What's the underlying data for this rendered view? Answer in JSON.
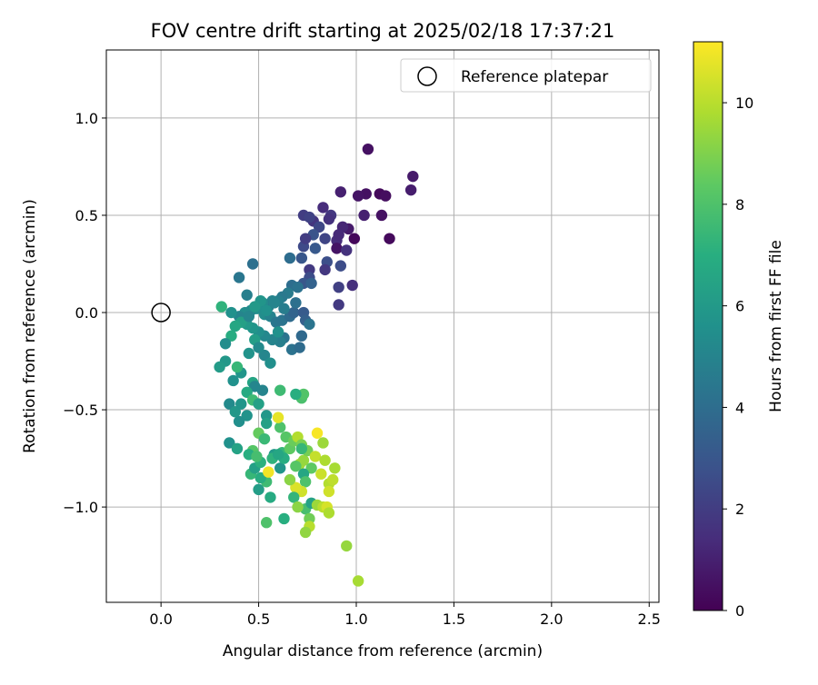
{
  "chart_data": {
    "type": "scatter",
    "title": "FOV centre drift starting at 2025/02/18 17:37:21",
    "xlabel": "Angular distance from reference (arcmin)",
    "ylabel": "Rotation from reference (arcmin)",
    "xlim": [
      -0.28,
      2.55
    ],
    "ylim": [
      -1.49,
      1.35
    ],
    "xticks": [
      0.0,
      0.5,
      1.0,
      1.5,
      2.0,
      2.5
    ],
    "xtick_labels": [
      "0.0",
      "0.5",
      "1.0",
      "1.5",
      "2.0",
      "2.5"
    ],
    "yticks": [
      -1.0,
      -0.5,
      0.0,
      0.5,
      1.0
    ],
    "ytick_labels": [
      "−1.0",
      "−0.5",
      "0.0",
      "0.5",
      "1.0"
    ],
    "grid": true,
    "legend": {
      "placement": "top-right",
      "entries": [
        "Reference platepar"
      ]
    },
    "reference_point": {
      "x": 0.0,
      "y": 0.0
    },
    "colorbar": {
      "label": "Hours from first FF file",
      "colormap": "viridis",
      "range": [
        0,
        11.2
      ],
      "ticks": [
        0,
        2,
        4,
        6,
        8,
        10
      ],
      "tick_labels": [
        "0",
        "2",
        "4",
        "6",
        "8",
        "10"
      ]
    },
    "points": [
      [
        1.06,
        0.84,
        0.5
      ],
      [
        1.29,
        0.7,
        0.8
      ],
      [
        1.28,
        0.63,
        0.9
      ],
      [
        0.92,
        0.62,
        1.0
      ],
      [
        1.12,
        0.61,
        0.3
      ],
      [
        1.15,
        0.6,
        0.4
      ],
      [
        1.05,
        0.61,
        0.5
      ],
      [
        1.01,
        0.6,
        0.6
      ],
      [
        1.13,
        0.5,
        0.5
      ],
      [
        1.04,
        0.5,
        1.0
      ],
      [
        1.17,
        0.38,
        0.3
      ],
      [
        0.99,
        0.38,
        0.2
      ],
      [
        0.96,
        0.43,
        0.8
      ],
      [
        0.93,
        0.44,
        1.2
      ],
      [
        0.9,
        0.37,
        1.4
      ],
      [
        0.9,
        0.33,
        0.6
      ],
      [
        0.95,
        0.32,
        1.6
      ],
      [
        0.91,
        0.4,
        1.3
      ],
      [
        0.83,
        0.54,
        1.4
      ],
      [
        0.87,
        0.5,
        1.8
      ],
      [
        0.86,
        0.48,
        1.6
      ],
      [
        0.78,
        0.47,
        1.7
      ],
      [
        0.73,
        0.5,
        2.0
      ],
      [
        0.76,
        0.49,
        2.2
      ],
      [
        0.81,
        0.44,
        2.4
      ],
      [
        0.84,
        0.38,
        2.3
      ],
      [
        0.78,
        0.4,
        2.9
      ],
      [
        0.73,
        0.34,
        2.5
      ],
      [
        0.79,
        0.33,
        3.1
      ],
      [
        0.74,
        0.38,
        2.0
      ],
      [
        0.72,
        0.28,
        3.0
      ],
      [
        0.85,
        0.26,
        2.7
      ],
      [
        0.84,
        0.22,
        1.8
      ],
      [
        0.76,
        0.22,
        1.9
      ],
      [
        0.76,
        0.18,
        2.6
      ],
      [
        0.73,
        0.15,
        3.0
      ],
      [
        0.77,
        0.15,
        3.5
      ],
      [
        0.92,
        0.24,
        2.6
      ],
      [
        0.91,
        0.13,
        2.1
      ],
      [
        0.98,
        0.14,
        1.5
      ],
      [
        0.91,
        0.04,
        1.9
      ],
      [
        0.66,
        0.28,
        4.0
      ],
      [
        0.67,
        0.14,
        4.0
      ],
      [
        0.7,
        0.13,
        4.2
      ],
      [
        0.65,
        0.1,
        4.6
      ],
      [
        0.62,
        0.08,
        4.5
      ],
      [
        0.6,
        0.06,
        4.8
      ],
      [
        0.57,
        0.06,
        5.0
      ],
      [
        0.55,
        0.03,
        4.7
      ],
      [
        0.52,
        0.05,
        5.3
      ],
      [
        0.49,
        0.02,
        5.5
      ],
      [
        0.46,
        0.01,
        5.2
      ],
      [
        0.43,
        0.0,
        5.4
      ],
      [
        0.4,
        -0.02,
        5.0
      ],
      [
        0.36,
        0.0,
        5.6
      ],
      [
        0.51,
        0.06,
        5.8
      ],
      [
        0.48,
        0.03,
        6.0
      ],
      [
        0.53,
        -0.01,
        5.4
      ],
      [
        0.56,
        -0.02,
        4.9
      ],
      [
        0.59,
        -0.05,
        4.4
      ],
      [
        0.62,
        -0.04,
        4.3
      ],
      [
        0.66,
        -0.02,
        3.9
      ],
      [
        0.68,
        0.0,
        3.6
      ],
      [
        0.73,
        0.0,
        3.2
      ],
      [
        0.74,
        -0.04,
        3.4
      ],
      [
        0.72,
        -0.12,
        3.8
      ],
      [
        0.63,
        -0.13,
        4.3
      ],
      [
        0.61,
        -0.15,
        4.8
      ],
      [
        0.57,
        -0.14,
        5.0
      ],
      [
        0.53,
        -0.12,
        5.2
      ],
      [
        0.5,
        -0.1,
        5.5
      ],
      [
        0.47,
        -0.08,
        5.8
      ],
      [
        0.44,
        -0.06,
        6.0
      ],
      [
        0.41,
        -0.05,
        6.3
      ],
      [
        0.38,
        -0.07,
        6.6
      ],
      [
        0.36,
        -0.12,
        6.9
      ],
      [
        0.33,
        -0.16,
        5.4
      ],
      [
        0.31,
        0.03,
        7.2
      ],
      [
        0.44,
        0.09,
        4.8
      ],
      [
        0.48,
        -0.14,
        6.2
      ],
      [
        0.45,
        -0.21,
        5.7
      ],
      [
        0.53,
        -0.22,
        5.1
      ],
      [
        0.56,
        -0.26,
        5.5
      ],
      [
        0.41,
        -0.31,
        5.8
      ],
      [
        0.39,
        -0.28,
        7.4
      ],
      [
        0.37,
        -0.35,
        5.6
      ],
      [
        0.33,
        -0.25,
        5.9
      ],
      [
        0.3,
        -0.28,
        6.1
      ],
      [
        0.47,
        -0.36,
        6.5
      ],
      [
        0.52,
        -0.4,
        5.0
      ],
      [
        0.48,
        -0.38,
        5.1
      ],
      [
        0.44,
        -0.41,
        6.8
      ],
      [
        0.47,
        -0.45,
        7.6
      ],
      [
        0.5,
        -0.47,
        6.3
      ],
      [
        0.44,
        -0.53,
        5.7
      ],
      [
        0.4,
        -0.56,
        5.5
      ],
      [
        0.35,
        -0.47,
        5.3
      ],
      [
        0.38,
        -0.51,
        5.9
      ],
      [
        0.35,
        -0.67,
        5.6
      ],
      [
        0.39,
        -0.7,
        6.4
      ],
      [
        0.41,
        -0.47,
        5.8
      ],
      [
        0.54,
        -0.53,
        5.9
      ],
      [
        0.54,
        -0.57,
        6.3
      ],
      [
        0.5,
        -0.62,
        8.5
      ],
      [
        0.53,
        -0.65,
        7.5
      ],
      [
        0.61,
        -0.59,
        8.0
      ],
      [
        0.64,
        -0.64,
        8.2
      ],
      [
        0.6,
        -0.54,
        10.8
      ],
      [
        0.62,
        -0.72,
        7.4
      ],
      [
        0.58,
        -0.73,
        6.0
      ],
      [
        0.61,
        -0.8,
        5.8
      ],
      [
        0.63,
        -0.75,
        6.9
      ],
      [
        0.66,
        -0.7,
        8.4
      ],
      [
        0.68,
        -0.66,
        8.6
      ],
      [
        0.7,
        -0.64,
        9.9
      ],
      [
        0.72,
        -0.68,
        8.9
      ],
      [
        0.71,
        -0.78,
        9.6
      ],
      [
        0.73,
        -0.76,
        9.4
      ],
      [
        0.75,
        -0.71,
        8.8
      ],
      [
        0.77,
        -0.8,
        8.4
      ],
      [
        0.79,
        -0.74,
        10.2
      ],
      [
        0.8,
        -0.62,
        11.1
      ],
      [
        0.83,
        -0.67,
        9.5
      ],
      [
        0.84,
        -0.76,
        9.8
      ],
      [
        0.82,
        -0.83,
        10.3
      ],
      [
        0.86,
        -0.88,
        9.9
      ],
      [
        0.86,
        -0.92,
        10.4
      ],
      [
        0.89,
        -0.8,
        9.7
      ],
      [
        0.88,
        -0.86,
        10.1
      ],
      [
        0.73,
        -0.83,
        6.6
      ],
      [
        0.74,
        -0.87,
        8.0
      ],
      [
        0.72,
        -0.92,
        10.4
      ],
      [
        0.69,
        -0.9,
        10.6
      ],
      [
        0.66,
        -0.86,
        9.2
      ],
      [
        0.68,
        -0.95,
        7.3
      ],
      [
        0.74,
        -1.01,
        7.8
      ],
      [
        0.77,
        -0.98,
        6.4
      ],
      [
        0.8,
        -0.99,
        9.5
      ],
      [
        0.83,
        -1.0,
        10.0
      ],
      [
        0.85,
        -1.0,
        10.5
      ],
      [
        0.86,
        -1.03,
        9.8
      ],
      [
        0.76,
        -1.06,
        8.7
      ],
      [
        0.7,
        -1.0,
        9.2
      ],
      [
        0.63,
        -1.06,
        7.0
      ],
      [
        0.54,
        -1.08,
        8.0
      ],
      [
        0.56,
        -0.95,
        6.8
      ],
      [
        0.5,
        -0.91,
        6.2
      ],
      [
        0.54,
        -0.87,
        7.6
      ],
      [
        0.51,
        -0.85,
        6.9
      ],
      [
        0.46,
        -0.83,
        7.4
      ],
      [
        0.48,
        -0.8,
        6.3
      ],
      [
        0.51,
        -0.77,
        7.1
      ],
      [
        0.55,
        -0.82,
        11.0
      ],
      [
        0.57,
        -0.75,
        7.2
      ],
      [
        0.6,
        -0.73,
        6.6
      ],
      [
        0.47,
        -0.71,
        8.2
      ],
      [
        0.45,
        -0.73,
        7.0
      ],
      [
        0.49,
        -0.74,
        7.8
      ],
      [
        0.72,
        -0.44,
        7.9
      ],
      [
        0.73,
        -0.42,
        8.1
      ],
      [
        0.72,
        -0.7,
        7.4
      ],
      [
        0.69,
        -0.79,
        8.2
      ],
      [
        0.76,
        -1.1,
        10.0
      ],
      [
        0.74,
        -1.13,
        9.3
      ],
      [
        0.95,
        -1.2,
        9.4
      ],
      [
        1.01,
        -1.38,
        9.7
      ],
      [
        0.69,
        -0.42,
        7.0
      ],
      [
        0.61,
        -0.4,
        7.6
      ],
      [
        0.67,
        -0.19,
        4.2
      ],
      [
        0.71,
        -0.18,
        3.9
      ],
      [
        0.76,
        -0.06,
        4.3
      ],
      [
        0.69,
        0.05,
        4.1
      ],
      [
        0.63,
        0.02,
        4.7
      ],
      [
        0.58,
        0.05,
        5.0
      ],
      [
        0.47,
        0.25,
        4.1
      ],
      [
        0.4,
        0.18,
        4.4
      ],
      [
        0.54,
        0.01,
        5.6
      ],
      [
        0.45,
        -0.02,
        5.1
      ],
      [
        0.5,
        -0.18,
        5.3
      ],
      [
        0.6,
        -0.1,
        5.6
      ]
    ]
  }
}
